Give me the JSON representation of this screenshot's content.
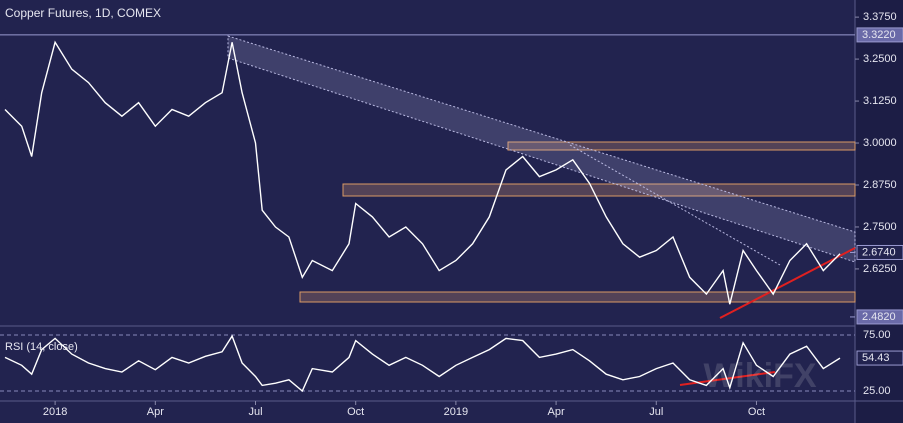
{
  "chart_data": {
    "type": "line",
    "title": "Copper Futures, 1D, COMEX",
    "watermark": "WikiFX",
    "color": "#ffffff",
    "x": [
      -1.5,
      -1,
      -0.7,
      -0.4,
      0,
      0.5,
      1,
      1.5,
      2,
      2.5,
      3,
      3.5,
      4,
      4.5,
      5,
      5.3,
      5.6,
      6,
      6.2,
      6.6,
      7,
      7.4,
      7.7,
      8.3,
      8.8,
      9,
      9.5,
      10,
      10.5,
      11,
      11.5,
      12,
      12.5,
      13,
      13.5,
      14,
      14.5,
      15,
      15.5,
      16,
      16.5,
      17,
      17.5,
      18,
      18.5,
      19,
      19.5,
      20,
      20.2,
      20.6,
      21,
      21.5,
      22,
      22.5,
      23,
      23.5
    ],
    "values": [
      3.1,
      3.05,
      2.96,
      3.15,
      3.3,
      3.22,
      3.18,
      3.12,
      3.08,
      3.12,
      3.05,
      3.1,
      3.08,
      3.12,
      3.15,
      3.3,
      3.15,
      3.0,
      2.8,
      2.75,
      2.72,
      2.6,
      2.65,
      2.62,
      2.7,
      2.82,
      2.78,
      2.72,
      2.75,
      2.7,
      2.62,
      2.65,
      2.7,
      2.78,
      2.92,
      2.96,
      2.9,
      2.92,
      2.95,
      2.88,
      2.78,
      2.7,
      2.66,
      2.68,
      2.72,
      2.6,
      2.55,
      2.62,
      2.52,
      2.68,
      2.62,
      2.55,
      2.65,
      2.7,
      2.62,
      2.67
    ],
    "xlim": [
      -1.65,
      23.95
    ],
    "xticks": [
      {
        "value": 0,
        "label": "2018"
      },
      {
        "value": 3,
        "label": "Apr"
      },
      {
        "value": 6,
        "label": "Jul"
      },
      {
        "value": 9,
        "label": "Oct"
      },
      {
        "value": 12,
        "label": "2019"
      },
      {
        "value": 15,
        "label": "Apr"
      },
      {
        "value": 18,
        "label": "Jul"
      },
      {
        "value": 21,
        "label": "Oct"
      }
    ],
    "ylim": [
      2.458,
      3.426
    ],
    "yticks": [
      {
        "value": 3.375,
        "label": "3.3750"
      },
      {
        "value": 3.25,
        "label": "3.2500"
      },
      {
        "value": 3.125,
        "label": "3.1250"
      },
      {
        "value": 3,
        "label": "3.0000"
      },
      {
        "value": 2.875,
        "label": "2.8750"
      },
      {
        "value": 2.75,
        "label": "2.7500"
      },
      {
        "value": 2.625,
        "label": "2.6250"
      }
    ],
    "levels": [
      {
        "value": 3.322,
        "label": "3.3220"
      },
      {
        "value": 2.674,
        "label": "2.6740"
      },
      {
        "value": 2.482,
        "label": "2.4820"
      }
    ],
    "rsi": {
      "title": "RSI (14, close)",
      "color": "#ffffff",
      "values": [
        55,
        48,
        40,
        62,
        72,
        58,
        50,
        45,
        42,
        52,
        44,
        55,
        50,
        56,
        60,
        74,
        50,
        38,
        30,
        32,
        35,
        25,
        45,
        42,
        55,
        70,
        58,
        48,
        55,
        48,
        38,
        48,
        55,
        62,
        72,
        70,
        55,
        58,
        62,
        52,
        40,
        35,
        38,
        45,
        50,
        35,
        30,
        45,
        28,
        68,
        48,
        38,
        58,
        65,
        45,
        54.43
      ],
      "ylim": [
        17,
        81.25
      ],
      "yticks": [
        {
          "value": 75,
          "label": "75.00"
        },
        {
          "value": 25,
          "label": "25.00"
        }
      ]
    }
  }
}
